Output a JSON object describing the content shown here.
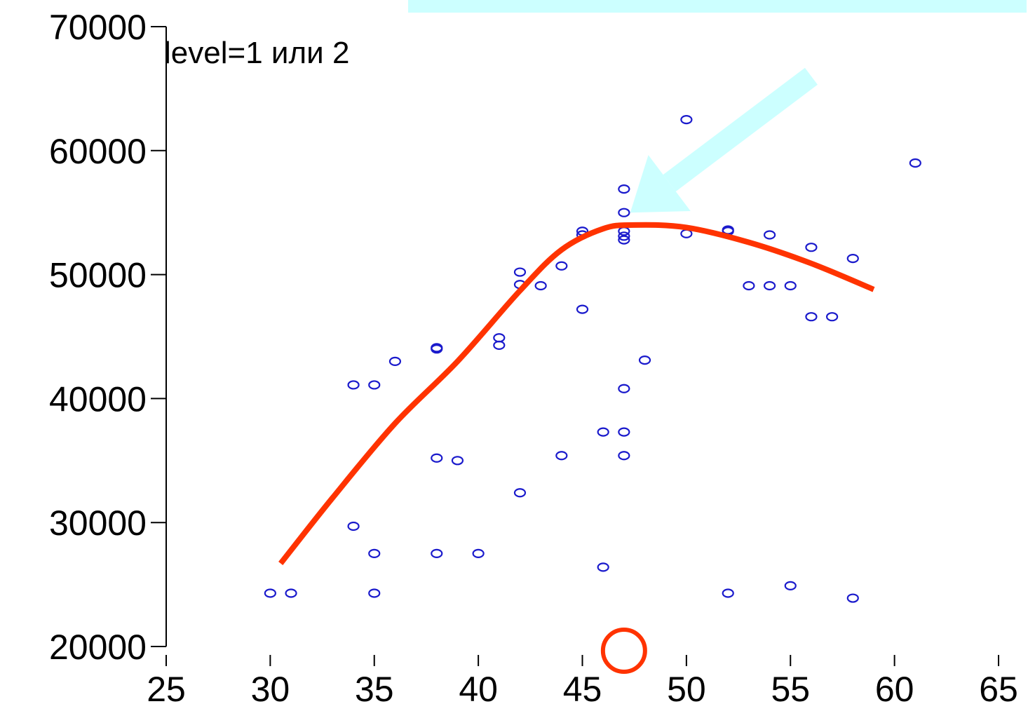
{
  "chart_data": {
    "type": "scatter",
    "title": "",
    "xlabel": "",
    "ylabel": "",
    "xlim": [
      25,
      65
    ],
    "ylim": [
      20000,
      70000
    ],
    "x_ticks": [
      25,
      30,
      35,
      40,
      45,
      50,
      55,
      60,
      65
    ],
    "y_ticks": [
      20000,
      30000,
      40000,
      50000,
      60000,
      70000
    ],
    "x_tick_labels": [
      "25",
      "30",
      "35",
      "40",
      "45",
      "50",
      "55",
      "60",
      "65"
    ],
    "y_tick_labels": [
      "20000",
      "30000",
      "40000",
      "50000",
      "60000",
      "70000"
    ],
    "grid": false,
    "annotation": "level=1 или 2",
    "series": [
      {
        "marker": "circle-open",
        "color": "#1a1acc",
        "points": [
          [
            30,
            24300
          ],
          [
            31,
            24300
          ],
          [
            34,
            41100
          ],
          [
            35,
            41100
          ],
          [
            34,
            29700
          ],
          [
            35,
            27500
          ],
          [
            35,
            24300
          ],
          [
            36,
            43000
          ],
          [
            38,
            44100
          ],
          [
            38,
            44000
          ],
          [
            38,
            35200
          ],
          [
            39,
            35000
          ],
          [
            38,
            27500
          ],
          [
            40,
            27500
          ],
          [
            41,
            44900
          ],
          [
            41,
            44300
          ],
          [
            42,
            50200
          ],
          [
            42,
            49200
          ],
          [
            43,
            49100
          ],
          [
            42,
            32400
          ],
          [
            44,
            50700
          ],
          [
            44,
            35400
          ],
          [
            45,
            53500
          ],
          [
            45,
            53200
          ],
          [
            45,
            47200
          ],
          [
            46,
            37300
          ],
          [
            46,
            26400
          ],
          [
            47,
            56900
          ],
          [
            47,
            55000
          ],
          [
            47,
            53500
          ],
          [
            47,
            53100
          ],
          [
            47,
            52800
          ],
          [
            47,
            40800
          ],
          [
            47,
            37300
          ],
          [
            47,
            35400
          ],
          [
            48,
            43100
          ],
          [
            50,
            62500
          ],
          [
            50,
            53300
          ],
          [
            52,
            53600
          ],
          [
            52,
            53500
          ],
          [
            52,
            24300
          ],
          [
            53,
            49100
          ],
          [
            54,
            49100
          ],
          [
            54,
            53200
          ],
          [
            55,
            49100
          ],
          [
            55,
            24900
          ],
          [
            56,
            52200
          ],
          [
            56,
            46600
          ],
          [
            57,
            46600
          ],
          [
            58,
            51300
          ],
          [
            58,
            23900
          ],
          [
            61,
            59000
          ]
        ]
      },
      {
        "type": "line",
        "color": "#ff3300",
        "points": [
          [
            30.5,
            26700
          ],
          [
            33,
            32000
          ],
          [
            36,
            38000
          ],
          [
            39,
            43000
          ],
          [
            42,
            48700
          ],
          [
            44,
            52000
          ],
          [
            46,
            53700
          ],
          [
            47.5,
            54000
          ],
          [
            50,
            53800
          ],
          [
            53,
            52600
          ],
          [
            56,
            50900
          ],
          [
            59,
            48800
          ]
        ]
      }
    ],
    "colors": {
      "highlight_box": "#ccffff",
      "arrow": "#ccffff",
      "marker_circle": "#ff3300"
    },
    "decorations": {
      "arrow": {
        "from": [
          56,
          66000
        ],
        "to": [
          47.3,
          55000
        ]
      },
      "x_axis_marker": {
        "x": 47,
        "shape": "circle"
      }
    }
  }
}
